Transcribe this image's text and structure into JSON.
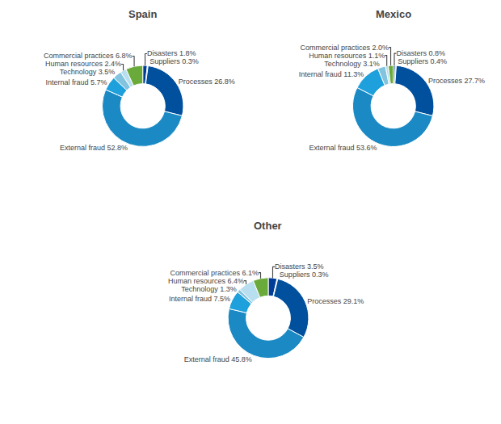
{
  "chart_data": [
    {
      "type": "pie",
      "title": "Spain",
      "categories": [
        "Disasters",
        "Suppliers",
        "Processes",
        "External fraud",
        "Internal fraud",
        "Technology",
        "Human resources",
        "Commercial practices"
      ],
      "values": [
        1.8,
        0.3,
        26.8,
        52.8,
        5.7,
        3.5,
        2.4,
        6.8
      ],
      "value_labels": [
        "Disasters 1.8%",
        "Suppliers 0.3%",
        "Processes 26.8%",
        "External fraud 52.8%",
        "Internal fraud 5.7%",
        "Technology 3.5%",
        "Human resources 2.4%",
        "Commercial practices 6.8%"
      ],
      "colors": [
        "#003d99",
        "#d4a017",
        "#00509e",
        "#1b8ac4",
        "#1da0dc",
        "#82c4e0",
        "#b8dff0",
        "#6aaa3a"
      ]
    },
    {
      "type": "pie",
      "title": "Mexico",
      "categories": [
        "Disasters",
        "Suppliers",
        "Processes",
        "External fraud",
        "Internal fraud",
        "Technology",
        "Human resources",
        "Commercial practices"
      ],
      "values": [
        0.8,
        0.4,
        27.7,
        53.6,
        11.3,
        3.1,
        1.1,
        2.0
      ],
      "value_labels": [
        "Disasters 0.8%",
        "Suppliers 0.4%",
        "Processes 27.7%",
        "External fraud 53.6%",
        "Internal fraud 11.3%",
        "Technology 3.1%",
        "Human resources 1.1%",
        "Commercial practices 2.0%"
      ],
      "colors": [
        "#003d99",
        "#d4a017",
        "#00509e",
        "#1b8ac4",
        "#1da0dc",
        "#82c4e0",
        "#b8dff0",
        "#6aaa3a"
      ]
    },
    {
      "type": "pie",
      "title": "Other",
      "categories": [
        "Disasters",
        "Suppliers",
        "Processes",
        "External fraud",
        "Internal fraud",
        "Technology",
        "Human resources",
        "Commercial practices"
      ],
      "values": [
        3.5,
        0.3,
        29.1,
        45.8,
        7.5,
        1.3,
        6.4,
        6.1
      ],
      "value_labels": [
        "Disasters 3.5%",
        "Suppliers 0.3%",
        "Processes 29.1%",
        "External fraud 45.8%",
        "Internal fraud 7.5%",
        "Technology 1.3%",
        "Human resources 6.4%",
        "Commercial practices 6.1%"
      ],
      "colors": [
        "#003d99",
        "#d4a017",
        "#00509e",
        "#1b8ac4",
        "#1da0dc",
        "#82c4e0",
        "#b8dff0",
        "#6aaa3a"
      ]
    }
  ]
}
